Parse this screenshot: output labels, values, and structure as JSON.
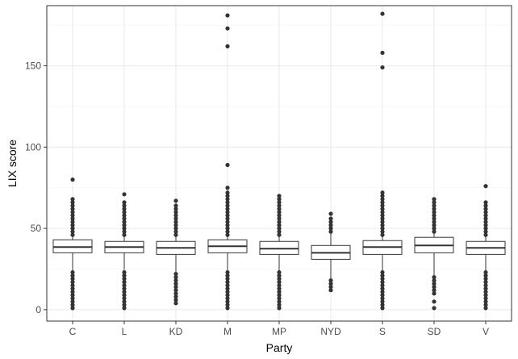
{
  "chart_data": {
    "type": "boxplot",
    "xlabel": "Party",
    "ylabel": "LIX score",
    "categories": [
      "C",
      "L",
      "KD",
      "M",
      "MP",
      "NYD",
      "S",
      "SD",
      "V"
    ],
    "ylim": [
      -7,
      187
    ],
    "yticks": [
      0,
      50,
      100,
      150
    ],
    "grid": true,
    "colors": {
      "box_fill": "#ffffff",
      "line": "#333333",
      "grid_major": "#ebebeb",
      "grid_minor": "#f5f5f5",
      "panel_border": "#333333"
    },
    "series": [
      {
        "category": "C",
        "q1": 35,
        "median": 38.5,
        "q3": 43,
        "outliers_high": [
          46,
          48,
          50,
          52,
          54,
          56,
          58,
          60,
          62,
          64,
          66,
          68,
          80
        ],
        "outliers_low": [
          23,
          21,
          19,
          17,
          15,
          13,
          11,
          9,
          7,
          5,
          3,
          1
        ]
      },
      {
        "category": "L",
        "q1": 35,
        "median": 38.5,
        "q3": 42,
        "outliers_high": [
          46,
          48,
          50,
          52,
          54,
          56,
          58,
          60,
          62,
          64,
          66,
          71
        ],
        "outliers_low": [
          23,
          21,
          19,
          17,
          15,
          13,
          11,
          9,
          7,
          5,
          3,
          1
        ]
      },
      {
        "category": "KD",
        "q1": 34,
        "median": 38,
        "q3": 42,
        "outliers_high": [
          46,
          48,
          50,
          52,
          54,
          56,
          58,
          60,
          62,
          64,
          67
        ],
        "outliers_low": [
          22,
          20,
          18,
          16,
          14,
          12,
          10,
          8,
          6,
          4
        ]
      },
      {
        "category": "M",
        "q1": 35,
        "median": 39,
        "q3": 43,
        "outliers_high": [
          46,
          48,
          50,
          52,
          54,
          56,
          58,
          60,
          62,
          64,
          66,
          68,
          70,
          72,
          75,
          89,
          162,
          173,
          181
        ],
        "outliers_low": [
          23,
          21,
          19,
          17,
          15,
          13,
          11,
          9,
          7,
          5,
          3,
          1
        ]
      },
      {
        "category": "MP",
        "q1": 34,
        "median": 37.5,
        "q3": 42,
        "outliers_high": [
          46,
          48,
          50,
          52,
          54,
          56,
          58,
          60,
          62,
          64,
          66,
          68,
          70
        ],
        "outliers_low": [
          23,
          21,
          19,
          17,
          15,
          13,
          11,
          9,
          7,
          5,
          3,
          1
        ]
      },
      {
        "category": "NYD",
        "q1": 31,
        "median": 35,
        "q3": 39.5,
        "outliers_high": [
          48,
          50,
          52,
          54,
          56,
          59
        ],
        "outliers_low": [
          18,
          16,
          14,
          12
        ]
      },
      {
        "category": "S",
        "q1": 34,
        "median": 38.5,
        "q3": 42.5,
        "outliers_high": [
          46,
          48,
          50,
          52,
          54,
          56,
          58,
          60,
          62,
          64,
          66,
          68,
          70,
          72,
          149,
          158,
          182
        ],
        "outliers_low": [
          23,
          21,
          19,
          17,
          15,
          13,
          11,
          9,
          7,
          5,
          3,
          1
        ]
      },
      {
        "category": "SD",
        "q1": 35,
        "median": 39.5,
        "q3": 44.5,
        "outliers_high": [
          48,
          50,
          52,
          54,
          56,
          58,
          60,
          62,
          64,
          66,
          68
        ],
        "outliers_low": [
          20,
          18,
          16,
          14,
          12,
          10,
          5,
          1
        ]
      },
      {
        "category": "V",
        "q1": 34,
        "median": 38,
        "q3": 42,
        "outliers_high": [
          46,
          48,
          50,
          52,
          54,
          56,
          58,
          60,
          62,
          64,
          66,
          76
        ],
        "outliers_low": [
          23,
          21,
          19,
          17,
          15,
          13,
          11,
          9,
          7,
          5,
          3,
          1
        ]
      }
    ]
  }
}
